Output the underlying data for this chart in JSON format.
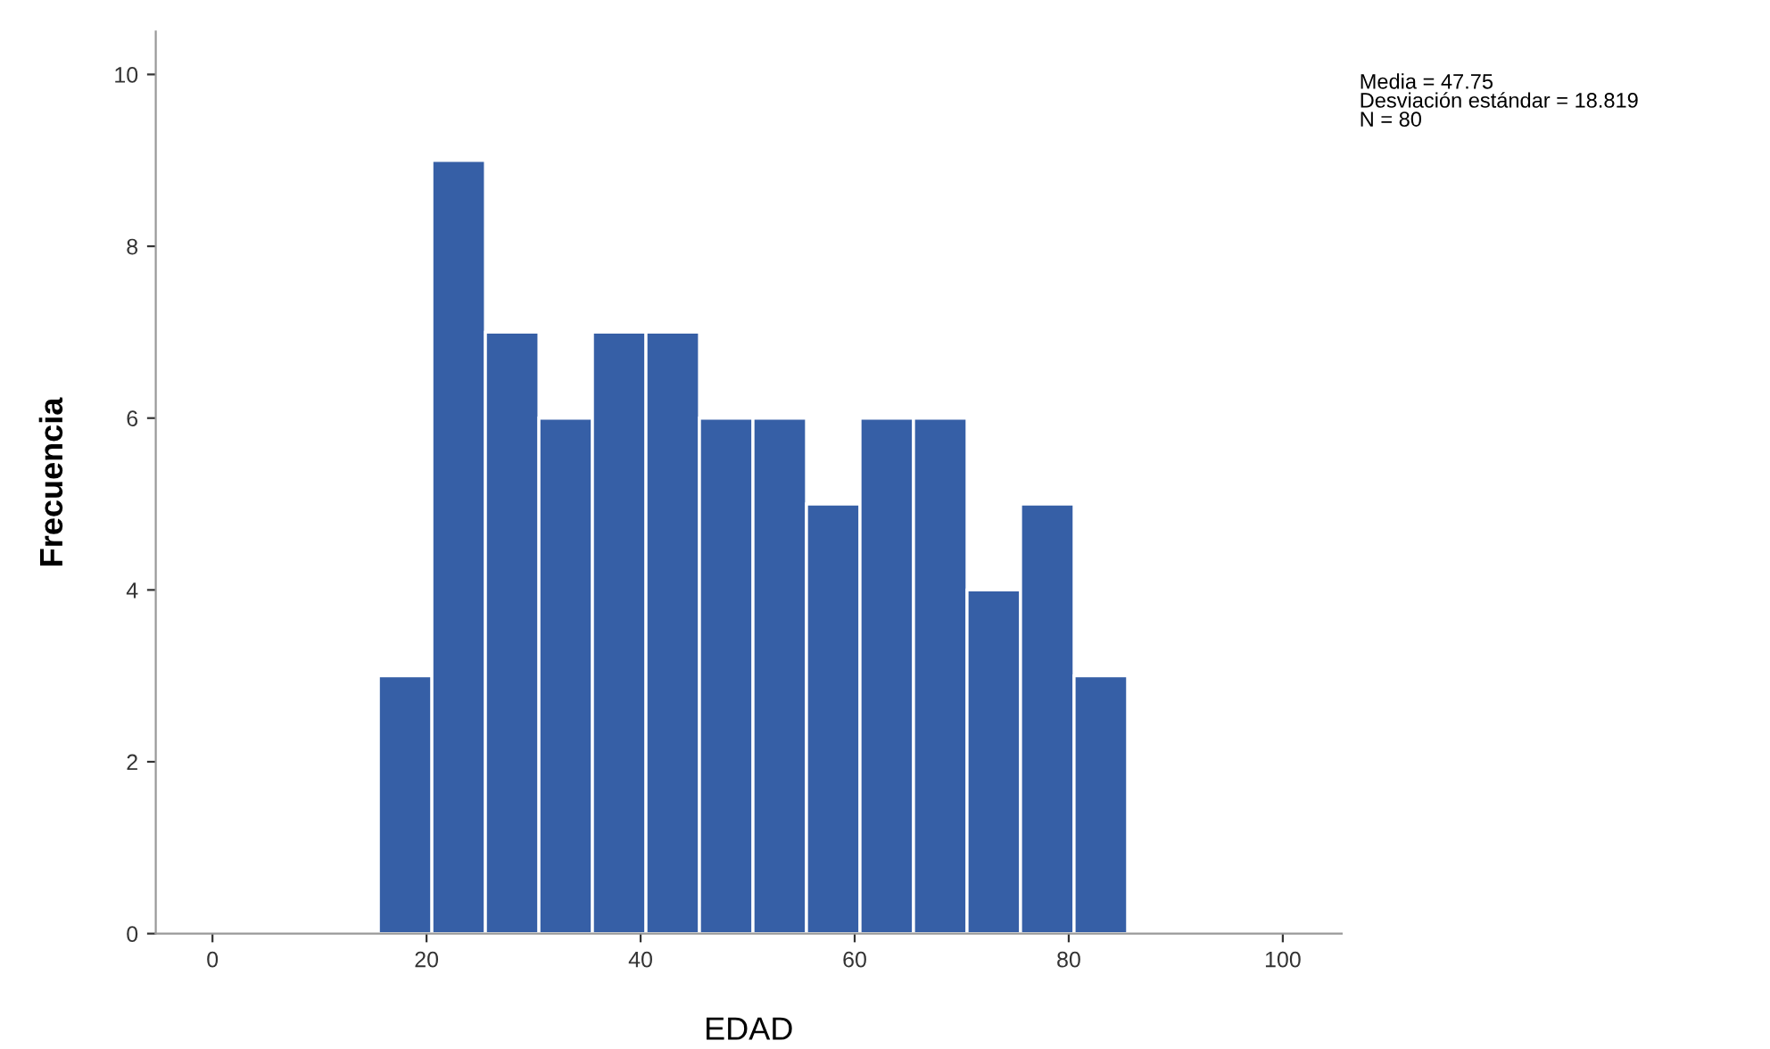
{
  "chart_data": {
    "type": "histogram",
    "xlabel": "EDAD",
    "ylabel": "Frecuencia",
    "bins": [
      15.5,
      20.5,
      25.5,
      30.5,
      35.5,
      40.5,
      45.5,
      50.5,
      55.5,
      60.5,
      65.5,
      70.5,
      75.5,
      80.5,
      85.5
    ],
    "values": [
      3,
      9,
      7,
      6,
      7,
      7,
      6,
      6,
      5,
      6,
      6,
      4,
      5,
      3
    ],
    "color": "#365fa6",
    "xlim": [
      -5.3,
      105.5
    ],
    "xticks": [
      0,
      20,
      40,
      60,
      80,
      100
    ],
    "ylim": [
      0,
      10.5
    ],
    "yticks": [
      0,
      2,
      4,
      6,
      8,
      10
    ],
    "grid": false,
    "legend": false,
    "annotations": [
      "Media = 47.75\nDesviación estándar = 18.819\nN = 80"
    ]
  }
}
